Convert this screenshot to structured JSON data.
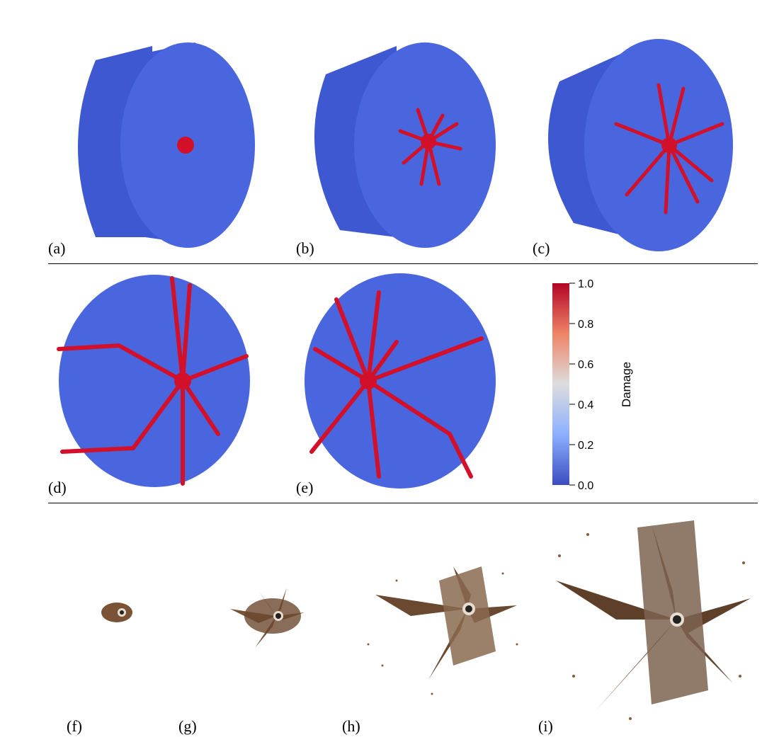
{
  "panel_labels": [
    "(a)",
    "(b)",
    "(c)",
    "(d)",
    "(e)",
    "(f)",
    "(g)",
    "(h)",
    "(i)"
  ],
  "colorbar": {
    "title": "Damage",
    "ticks": [
      "1.0",
      "0.8",
      "0.6",
      "0.4",
      "0.2",
      "0.0"
    ],
    "colors": {
      "high": "#b40426",
      "mid": "#dddddd",
      "low": "#3b4cc0"
    }
  },
  "colors": {
    "specimen": "#4a63d9",
    "specimen_side": "#3f57cc",
    "crack": "#d21029",
    "fragment": "#7a5236",
    "fragment_light": "#c9b7a5"
  }
}
